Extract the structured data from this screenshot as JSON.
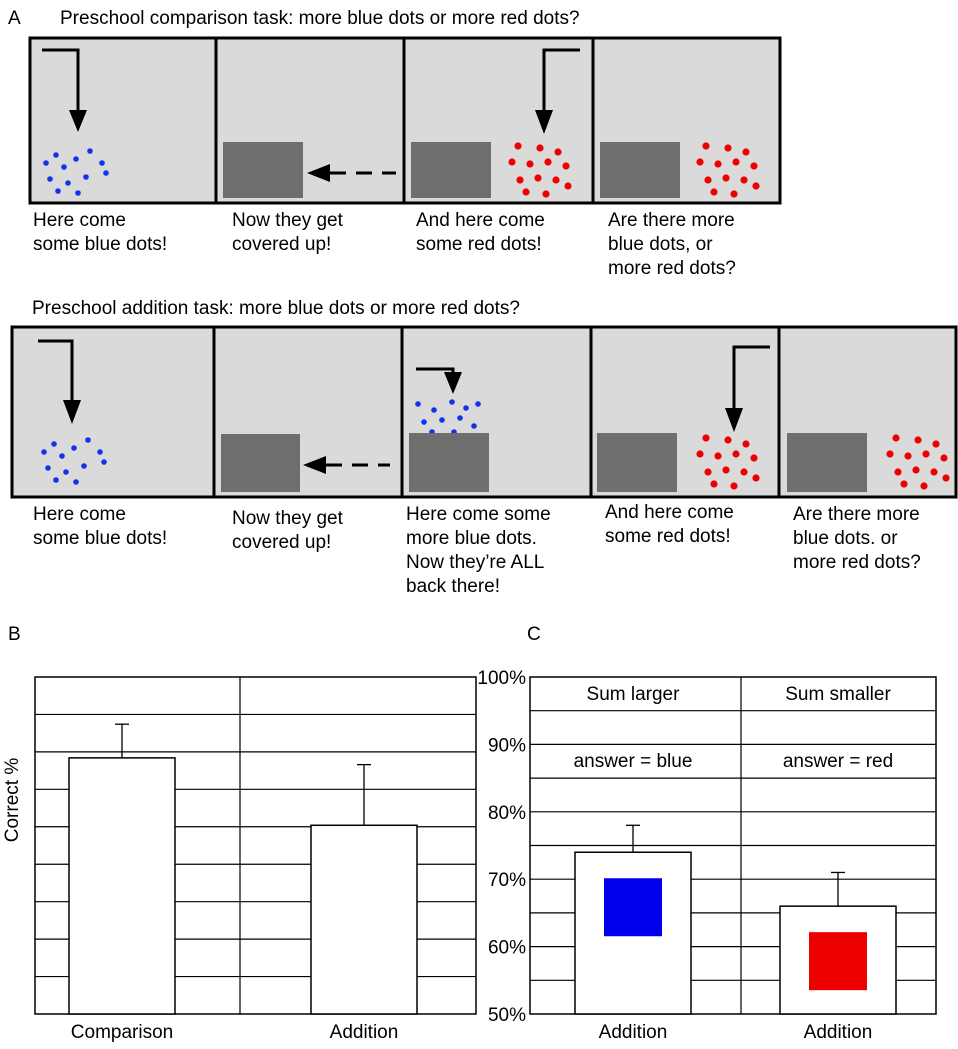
{
  "panel_a": {
    "letter": "A",
    "comparison": {
      "title": "Preschool comparison task: more blue dots or more red dots?",
      "captions": [
        [
          "Here come",
          "some blue dots!"
        ],
        [
          "Now they get",
          "covered up!"
        ],
        [
          "And here come",
          "some red dots!"
        ],
        [
          "Are there more",
          "blue dots, or",
          "more red dots?"
        ]
      ]
    },
    "addition": {
      "title": "Preschool addition task: more blue dots or more red dots?",
      "captions": [
        [
          "Here come",
          "some blue dots!"
        ],
        [
          "Now they get",
          "covered up!"
        ],
        [
          "Here come some",
          "more blue dots.",
          "Now they’re ALL",
          "back there!"
        ],
        [
          "And here come",
          "some red dots!"
        ],
        [
          "Are there more",
          "blue dots. or",
          "more red dots?"
        ]
      ]
    },
    "colors": {
      "panel_bg": "#dadada",
      "cover": "#6e6e6e",
      "blue": "#1133ee",
      "red": "#ee0000"
    }
  },
  "chart_data": [
    {
      "letter": "B",
      "type": "bar",
      "ylabel": "Correct %",
      "categories": [
        "Comparison",
        "Addition"
      ],
      "values": [
        89,
        84
      ],
      "errors": [
        2.5,
        4.5
      ],
      "ylim": [
        70,
        95
      ],
      "grid": true
    },
    {
      "letter": "C",
      "type": "bar",
      "ylabel": "",
      "yticks": [
        "100%",
        "90%",
        "80%",
        "70%",
        "60%",
        "50%"
      ],
      "ytick_values": [
        100,
        90,
        80,
        70,
        60,
        50
      ],
      "categories": [
        "Addition",
        "Addition"
      ],
      "groups": [
        "Sum larger",
        "Sum smaller"
      ],
      "answers": [
        "answer = blue",
        "answer = red"
      ],
      "values": [
        74,
        66
      ],
      "errors": [
        4,
        5
      ],
      "ylim": [
        50,
        100
      ],
      "colors": [
        "#0000ee",
        "#ee0000"
      ],
      "grid": true
    }
  ]
}
